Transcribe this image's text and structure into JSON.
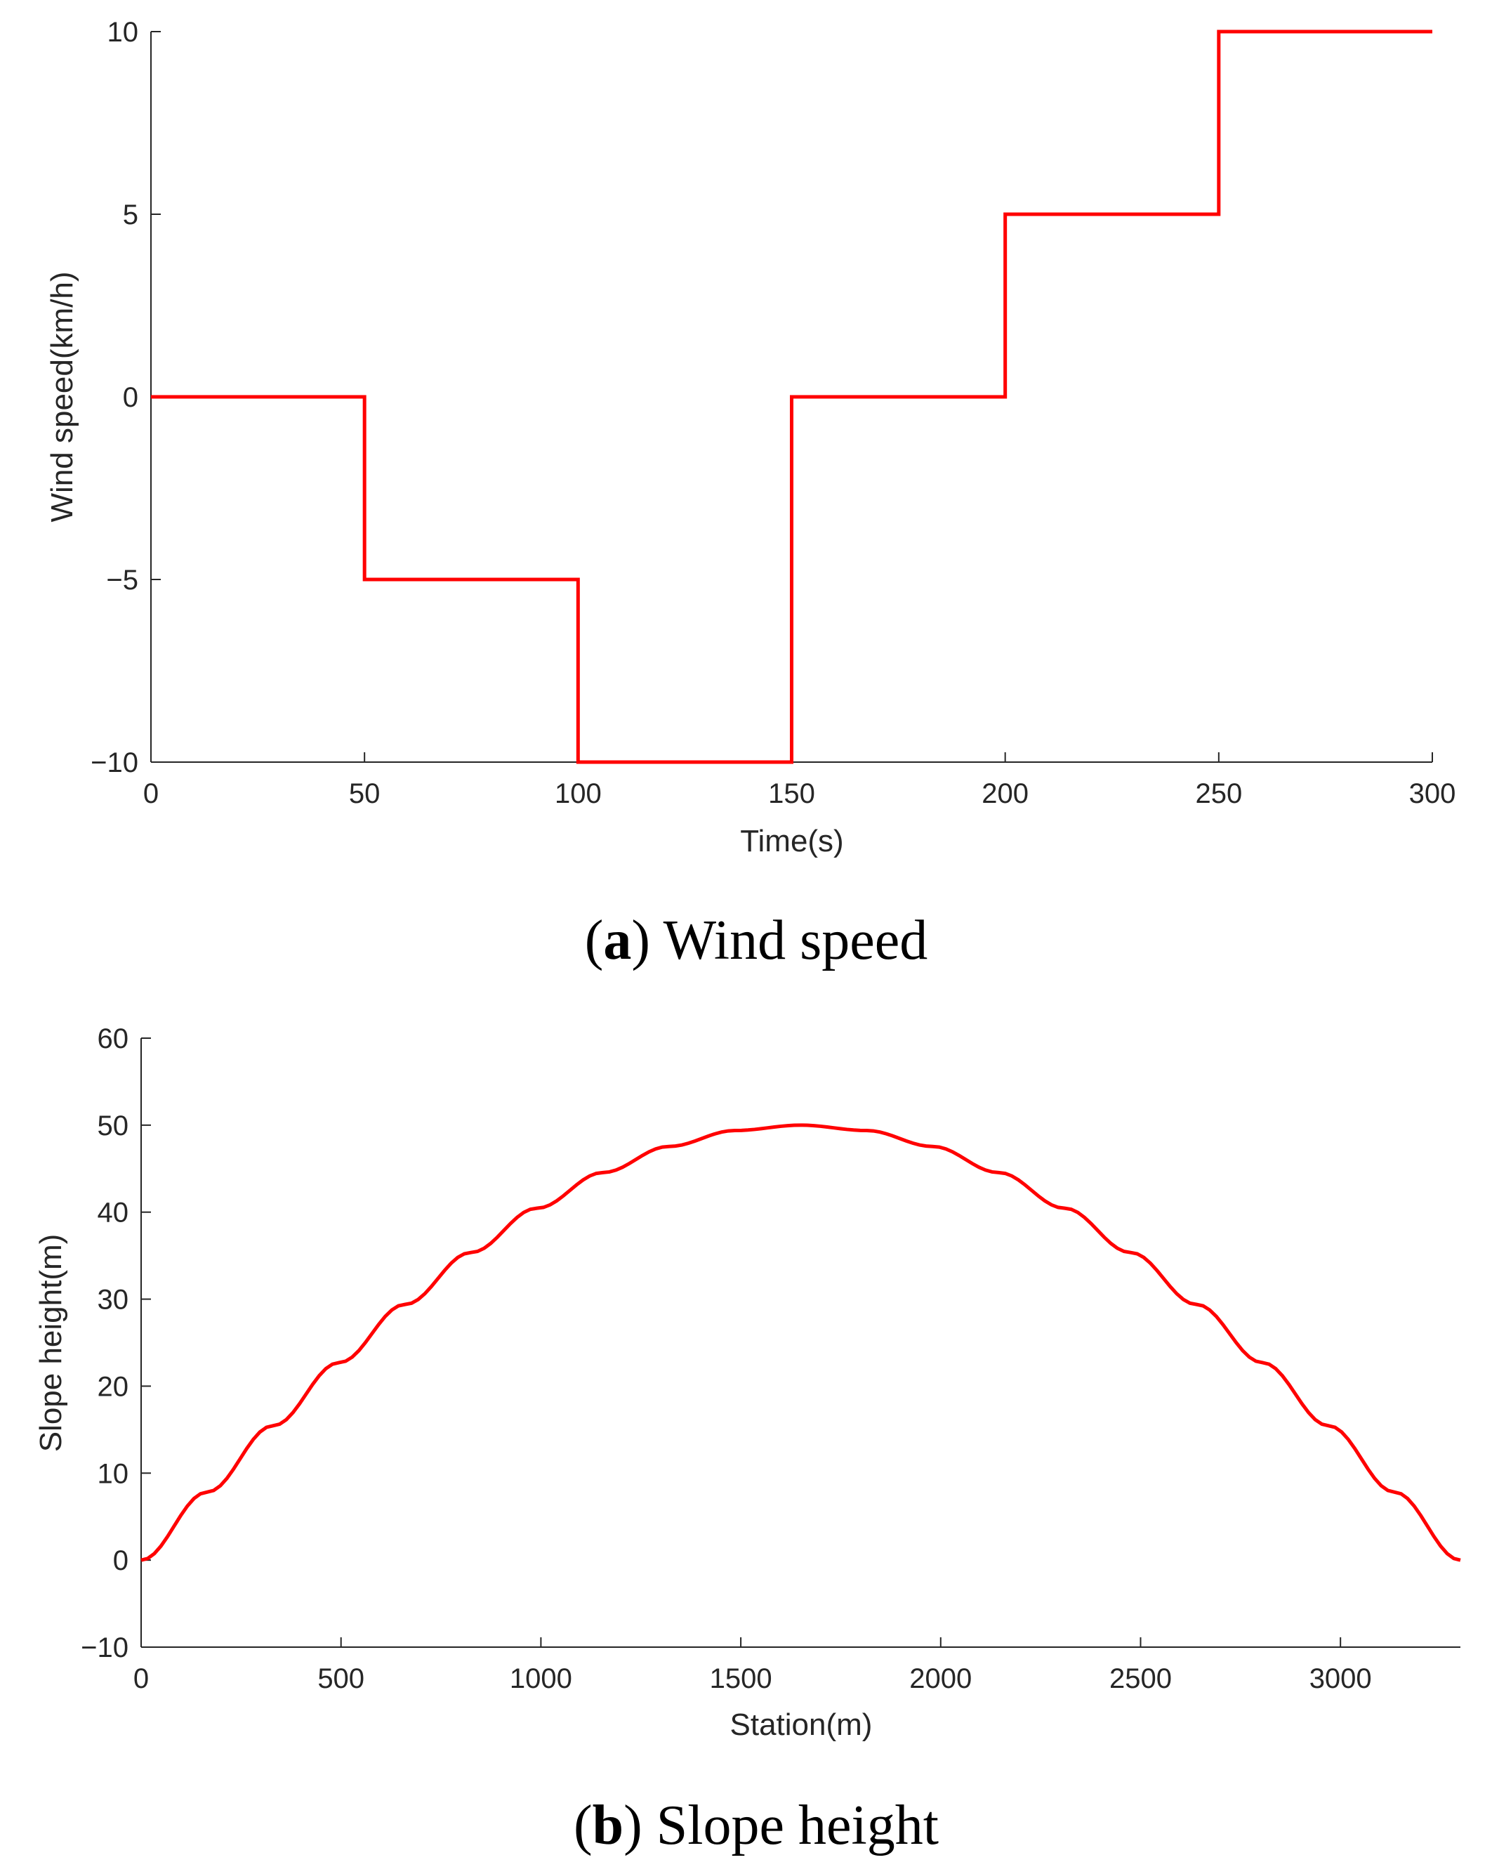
{
  "chart_data": [
    {
      "type": "line",
      "subplot": "a",
      "caption_letter": "a",
      "caption_text": "Wind speed",
      "title": "",
      "xlabel": "Time(s)",
      "ylabel": "Wind speed(km/h)",
      "xlim": [
        0,
        300
      ],
      "ylim": [
        -10,
        10
      ],
      "xticks": [
        0,
        50,
        100,
        150,
        200,
        250,
        300
      ],
      "yticks": [
        -10,
        -5,
        0,
        5,
        10
      ],
      "xtick_labels": [
        "0",
        "50",
        "100",
        "150",
        "200",
        "250",
        "300"
      ],
      "ytick_labels": [
        "−10",
        "−5",
        "0",
        "5",
        "10"
      ],
      "grid": false,
      "series": [
        {
          "name": "Wind speed",
          "color": "#ff0000",
          "x": [
            0,
            50,
            50,
            100,
            100,
            150,
            150,
            200,
            200,
            250,
            250,
            300
          ],
          "y": [
            0,
            0,
            -5,
            -5,
            -10,
            -10,
            0,
            0,
            5,
            5,
            10,
            10
          ]
        }
      ]
    },
    {
      "type": "line",
      "subplot": "b",
      "caption_letter": "b",
      "caption_text": "Slope height",
      "title": "",
      "xlabel": "Station(m)",
      "ylabel": "Slope height(m)",
      "xlim": [
        0,
        3300
      ],
      "ylim": [
        -10,
        60
      ],
      "xticks": [
        0,
        500,
        1000,
        1500,
        2000,
        2500,
        3000
      ],
      "yticks": [
        -10,
        0,
        10,
        20,
        30,
        40,
        50,
        60
      ],
      "xtick_labels": [
        "0",
        "500",
        "1000",
        "1500",
        "2000",
        "2500",
        "3000"
      ],
      "ytick_labels": [
        "−10",
        "0",
        "10",
        "20",
        "30",
        "40",
        "50",
        "60"
      ],
      "grid": false,
      "series": [
        {
          "name": "Slope height",
          "color": "#ff0000",
          "x": [
            0,
            165,
            330,
            495,
            660,
            825,
            990,
            1155,
            1320,
            1485,
            1650,
            1815,
            1980,
            2145,
            2310,
            2475,
            2640,
            2805,
            2970,
            3135,
            3300
          ],
          "y": [
            0,
            7.82,
            15.45,
            22.7,
            29.39,
            35.36,
            40.45,
            44.55,
            47.55,
            49.38,
            50,
            49.38,
            47.55,
            44.55,
            40.45,
            35.36,
            29.39,
            22.7,
            15.45,
            7.82,
            0
          ]
        }
      ]
    }
  ]
}
